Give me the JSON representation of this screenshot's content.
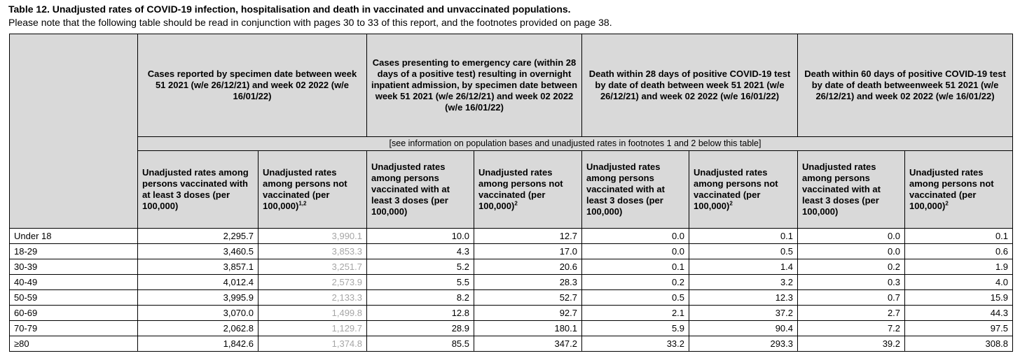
{
  "title": "Table 12. Unadjusted rates of COVID-19 infection, hospitalisation and death in vaccinated and unvaccinated populations.",
  "subtitle": "Please note that the following table should be read in conjunction with pages 30 to 33 of this report, and the footnotes provided on page 38.",
  "group_headers": [
    "Cases reported by specimen date between week 51 2021 (w/e 26/12/21) and week 02 2022 (w/e 16/01/22)",
    "Cases presenting to emergency care (within 28 days of a positive test) resulting in overnight inpatient admission, by specimen date between week 51 2021 (w/e 26/12/21) and week 02 2022 (w/e 16/01/22)",
    "Death within 28 days of positive COVID-19 test by date of death between week 51 2021 (w/e 26/12/21) and week 02 2022 (w/e 16/01/22)",
    "Death within 60 days of positive COVID-19 test by date of death betweenweek 51 2021 (w/e 26/12/21) and week 02 2022 (w/e 16/01/22)"
  ],
  "population_note": "[see information on population bases and unadjusted rates in footnotes 1 and 2 below this table]",
  "sub_headers": [
    {
      "text": "Unadjusted rates among persons vaccinated with at least 3 doses (per 100,000)",
      "sup": ""
    },
    {
      "text": "Unadjusted rates among persons not vaccinated (per 100,000)",
      "sup": "1,2"
    },
    {
      "text": "Unadjusted rates among persons vaccinated with at least 3 doses (per 100,000)",
      "sup": ""
    },
    {
      "text": "Unadjusted  rates among persons not vaccinated (per 100,000)",
      "sup": "2"
    },
    {
      "text": "Unadjusted rates among persons vaccinated with at least 3 doses (per 100,000)",
      "sup": ""
    },
    {
      "text": "Unadjusted rates among persons not vaccinated (per 100,000)",
      "sup": "2"
    },
    {
      "text": "Unadjusted rates among persons vaccinated with at least 3 doses (per 100,000)",
      "sup": ""
    },
    {
      "text": "Unadjusted rates among persons not vaccinated (per 100,000)",
      "sup": "2"
    }
  ],
  "rows": [
    {
      "label": "Under 18",
      "values": [
        "2,295.7",
        "3,990.1",
        "10.0",
        "12.7",
        "0.0",
        "0.1",
        "0.0",
        "0.1"
      ]
    },
    {
      "label": "18-29",
      "values": [
        "3,460.5",
        "3,853.3",
        "4.3",
        "17.0",
        "0.0",
        "0.5",
        "0.0",
        "0.6"
      ]
    },
    {
      "label": "30-39",
      "values": [
        "3,857.1",
        "3,251.7",
        "5.2",
        "20.6",
        "0.1",
        "1.4",
        "0.2",
        "1.9"
      ]
    },
    {
      "label": "40-49",
      "values": [
        "4,012.4",
        "2,573.9",
        "5.5",
        "28.3",
        "0.2",
        "3.2",
        "0.3",
        "4.0"
      ]
    },
    {
      "label": "50-59",
      "values": [
        "3,995.9",
        "2,133.3",
        "8.2",
        "52.7",
        "0.5",
        "12.3",
        "0.7",
        "15.9"
      ]
    },
    {
      "label": "60-69",
      "values": [
        "3,070.0",
        "1,499.8",
        "12.8",
        "92.7",
        "2.1",
        "37.2",
        "2.7",
        "44.3"
      ]
    },
    {
      "label": "70-79",
      "values": [
        "2,062.8",
        "1,129.7",
        "28.9",
        "180.1",
        "5.9",
        "90.4",
        "7.2",
        "97.5"
      ]
    },
    {
      "label": "≥80",
      "values": [
        "1,842.6",
        "1,374.8",
        "85.5",
        "347.2",
        "33.2",
        "293.3",
        "39.2",
        "308.8"
      ]
    }
  ],
  "colors": {
    "header_bg": "#d9d9d9",
    "greyed_value": "#a6a6a6"
  }
}
